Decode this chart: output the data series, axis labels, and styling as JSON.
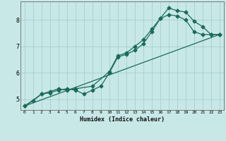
{
  "xlabel": "Humidex (Indice chaleur)",
  "ylabel": "",
  "bg_color": "#c8e8e8",
  "grid_color": "#a8cece",
  "line_color": "#1a6b5a",
  "xlim": [
    -0.5,
    23.5
  ],
  "ylim": [
    4.6,
    8.7
  ],
  "line1_x": [
    0,
    1,
    2,
    3,
    4,
    5,
    6,
    7,
    8,
    9,
    10,
    11,
    12,
    13,
    14,
    15,
    16,
    17,
    18,
    19,
    20,
    21,
    22,
    23
  ],
  "line1_y": [
    4.75,
    4.95,
    5.2,
    5.25,
    5.35,
    5.4,
    5.35,
    5.2,
    5.35,
    5.5,
    6.0,
    6.6,
    6.7,
    6.85,
    7.1,
    7.55,
    8.05,
    8.2,
    8.15,
    8.0,
    7.55,
    7.45,
    7.45,
    7.45
  ],
  "line2_x": [
    0,
    2,
    3,
    4,
    5,
    6,
    8,
    10,
    11,
    12,
    13,
    14,
    15,
    16,
    17,
    18,
    19,
    20,
    21,
    22,
    23
  ],
  "line2_y": [
    4.75,
    5.2,
    5.3,
    5.4,
    5.35,
    5.4,
    5.5,
    6.05,
    6.65,
    6.75,
    7.0,
    7.25,
    7.65,
    8.05,
    8.45,
    8.35,
    8.3,
    7.95,
    7.75,
    7.45,
    7.45
  ],
  "line3_x": [
    0,
    23
  ],
  "line3_y": [
    4.75,
    7.45
  ],
  "xticks": [
    0,
    1,
    2,
    3,
    4,
    5,
    6,
    7,
    8,
    9,
    10,
    11,
    12,
    13,
    14,
    15,
    16,
    17,
    18,
    19,
    20,
    21,
    22,
    23
  ],
  "yticks": [
    5,
    6,
    7,
    8
  ]
}
